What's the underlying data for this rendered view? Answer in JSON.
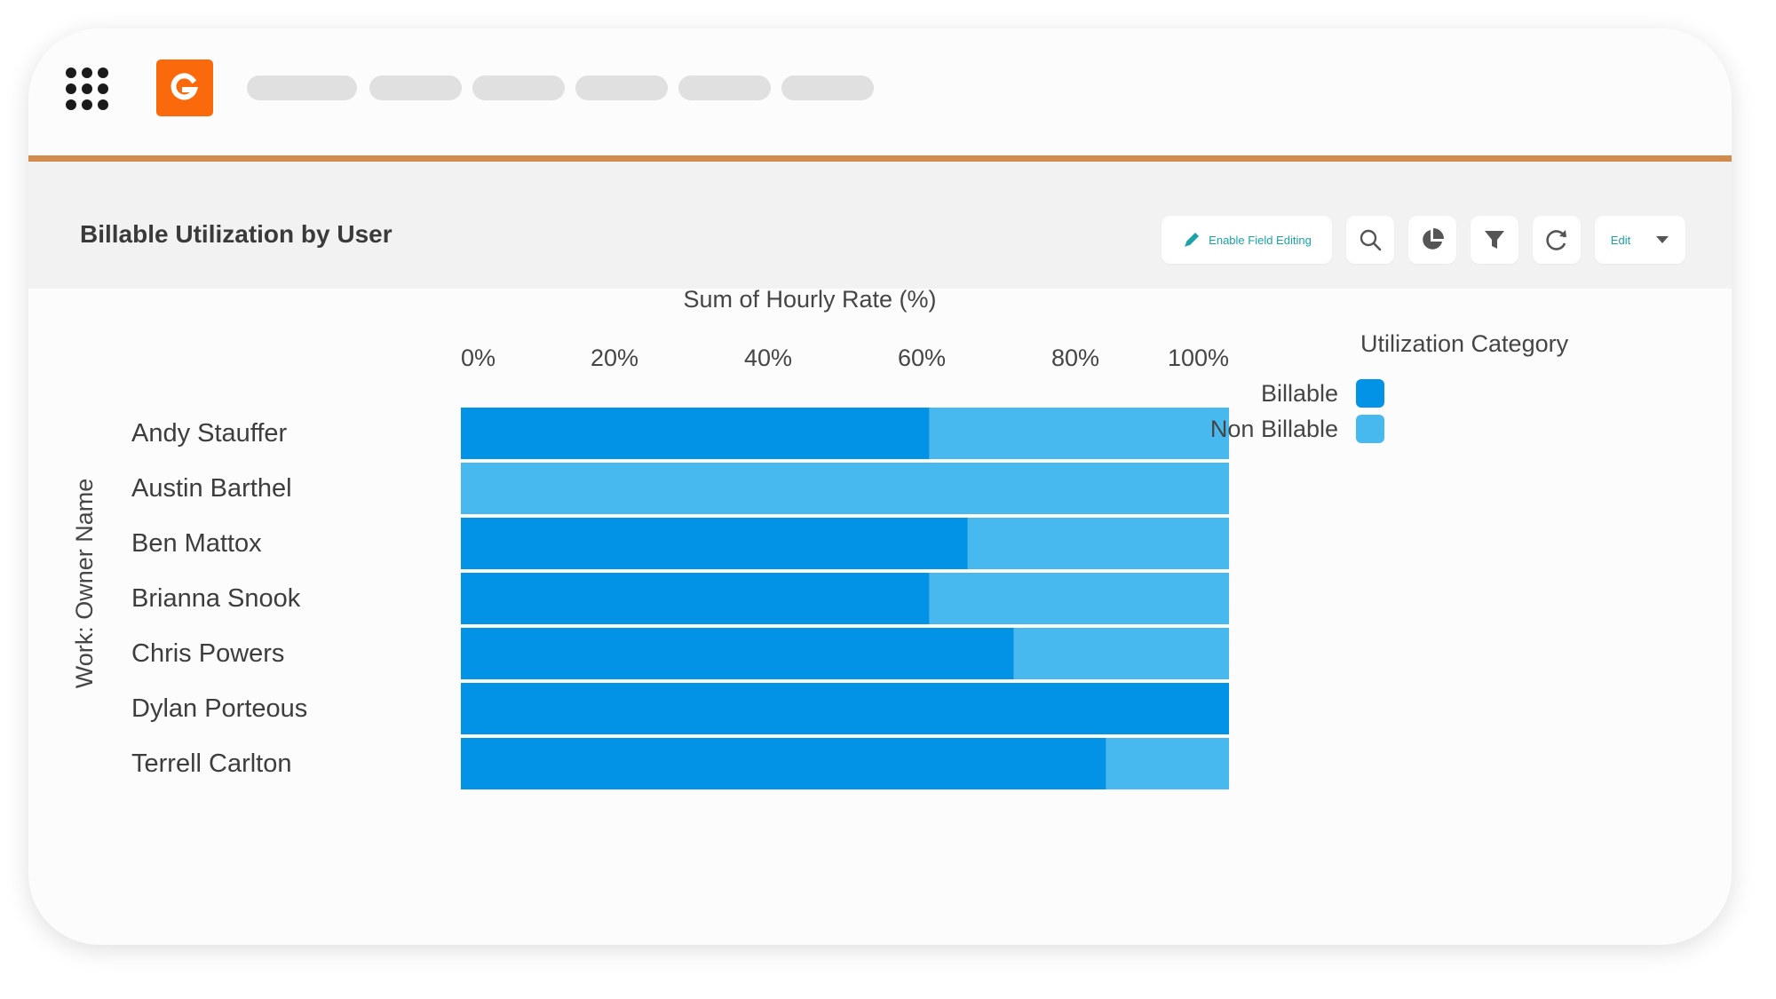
{
  "header": {
    "title": "Billable Utilization by User",
    "enable_field_editing_label": "Enable Field Editing",
    "edit_label": "Edit"
  },
  "colors": {
    "accent_line": "#d18b4b",
    "logo": "#fa6a0c",
    "billable": "#0393e6",
    "non_billable": "#48b9ee",
    "action_text": "#1aa3a6"
  },
  "icons": [
    "apps-grid-icon",
    "logo-icon",
    "pencil-icon",
    "search-icon",
    "pie-chart-icon",
    "filter-icon",
    "refresh-icon",
    "chevron-down-icon"
  ],
  "chart_data": {
    "type": "bar",
    "orientation": "horizontal",
    "stacked": "percent",
    "title": "Sum of Hourly Rate (%)",
    "ylabel": "Work: Owner Name",
    "x_ticks": [
      "0%",
      "20%",
      "40%",
      "60%",
      "80%",
      "100%"
    ],
    "xlim": [
      0,
      100
    ],
    "categories": [
      "Andy Stauffer",
      "Austin Barthel",
      "Ben Mattox",
      "Brianna Snook",
      "Chris Powers",
      "Dylan Porteous",
      "Terrell Carlton"
    ],
    "series": [
      {
        "name": "Billable",
        "values": [
          61,
          0,
          66,
          61,
          72,
          100,
          84
        ]
      },
      {
        "name": "Non Billable",
        "values": [
          39,
          100,
          34,
          39,
          28,
          0,
          16
        ]
      }
    ],
    "legend": {
      "title": "Utilization Category",
      "position": "right",
      "items": [
        "Billable",
        "Non Billable"
      ]
    }
  }
}
